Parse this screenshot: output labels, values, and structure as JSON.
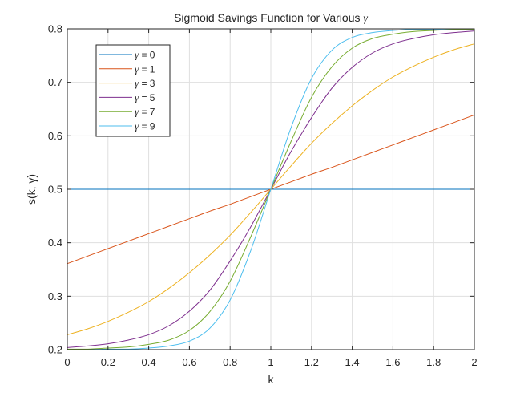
{
  "chart_data": {
    "type": "line",
    "title_text": "Sigmoid Savings Function for Various ",
    "title_symbol": "γ",
    "xlabel": "k",
    "ylabel": "s(k, γ)",
    "xlim": [
      0,
      2
    ],
    "ylim": [
      0.2,
      0.8
    ],
    "x_ticks": [
      "0",
      "0.2",
      "0.4",
      "0.6",
      "0.8",
      "1",
      "1.2",
      "1.4",
      "1.6",
      "1.8",
      "2"
    ],
    "y_ticks": [
      "0.2",
      "0.3",
      "0.4",
      "0.5",
      "0.6",
      "0.7",
      "0.8"
    ],
    "grid": true,
    "legend_position": "top-left",
    "x": [
      0,
      0.1,
      0.2,
      0.3,
      0.4,
      0.5,
      0.6,
      0.7,
      0.8,
      0.9,
      1.0,
      1.1,
      1.2,
      1.3,
      1.4,
      1.5,
      1.6,
      1.7,
      1.8,
      1.9,
      2.0
    ],
    "series": [
      {
        "name": "γ = 0",
        "symbol": "γ",
        "suffix": " = 0",
        "color": "#0072BD",
        "values": [
          0.5,
          0.5,
          0.5,
          0.5,
          0.5,
          0.5,
          0.5,
          0.5,
          0.5,
          0.5,
          0.5,
          0.5,
          0.5,
          0.5,
          0.5,
          0.5,
          0.5,
          0.5,
          0.5,
          0.5,
          0.5
        ]
      },
      {
        "name": "γ = 1",
        "symbol": "γ",
        "suffix": " = 1",
        "color": "#D95319",
        "values": [
          0.361,
          0.375,
          0.389,
          0.403,
          0.417,
          0.431,
          0.445,
          0.459,
          0.472,
          0.486,
          0.5,
          0.514,
          0.528,
          0.541,
          0.555,
          0.569,
          0.583,
          0.597,
          0.611,
          0.625,
          0.639
        ]
      },
      {
        "name": "γ = 3",
        "symbol": "γ",
        "suffix": " = 3",
        "color": "#EDB120",
        "values": [
          0.228,
          0.239,
          0.253,
          0.27,
          0.29,
          0.315,
          0.344,
          0.377,
          0.414,
          0.456,
          0.5,
          0.544,
          0.586,
          0.623,
          0.656,
          0.685,
          0.71,
          0.73,
          0.747,
          0.761,
          0.772
        ]
      },
      {
        "name": "γ = 5",
        "symbol": "γ",
        "suffix": " = 5",
        "color": "#7E2F8E",
        "values": [
          0.204,
          0.207,
          0.211,
          0.218,
          0.228,
          0.245,
          0.272,
          0.311,
          0.366,
          0.429,
          0.5,
          0.571,
          0.634,
          0.689,
          0.728,
          0.755,
          0.772,
          0.782,
          0.789,
          0.793,
          0.796
        ]
      },
      {
        "name": "γ = 7",
        "symbol": "γ",
        "suffix": " = 7",
        "color": "#77AC30",
        "values": [
          0.201,
          0.201,
          0.203,
          0.205,
          0.21,
          0.218,
          0.236,
          0.271,
          0.328,
          0.41,
          0.5,
          0.59,
          0.672,
          0.729,
          0.764,
          0.782,
          0.79,
          0.795,
          0.797,
          0.799,
          0.799
        ]
      },
      {
        "name": "γ = 9",
        "symbol": "γ",
        "suffix": " = 9",
        "color": "#4DBEEE",
        "values": [
          0.2,
          0.2,
          0.201,
          0.201,
          0.203,
          0.207,
          0.216,
          0.24,
          0.293,
          0.384,
          0.5,
          0.616,
          0.707,
          0.76,
          0.784,
          0.793,
          0.797,
          0.799,
          0.799,
          0.8,
          0.8
        ]
      }
    ]
  }
}
